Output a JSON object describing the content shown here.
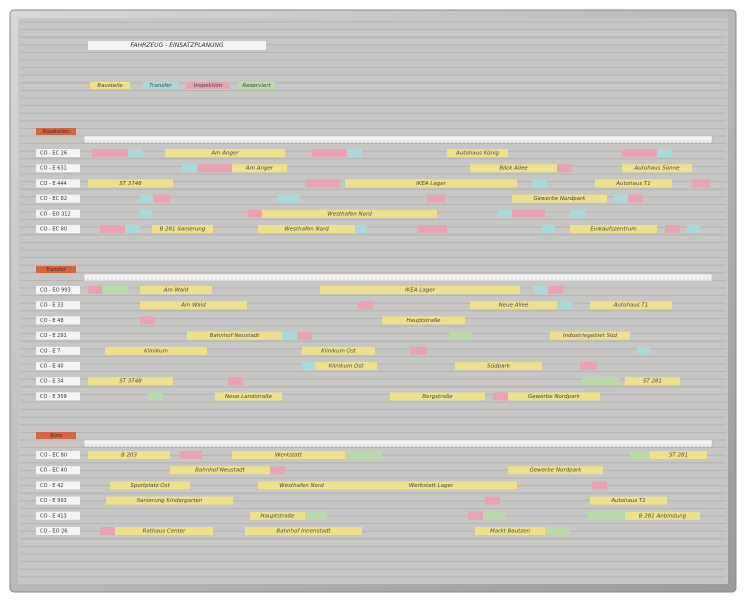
{
  "title": "FAHRZEUG - EINSATZPLANUNG",
  "legend": [
    {
      "text": "Baustelle",
      "color": "#efe08c"
    },
    {
      "text": "Transfer",
      "color": "#a9d9d9"
    },
    {
      "text": "Inspektion",
      "color": "#e9a2b2"
    },
    {
      "text": "Reserviert",
      "color": "#b9d9a9"
    }
  ],
  "sections": [
    {
      "label": "Baustellen",
      "rows": [
        {
          "label": "CO - EC 26",
          "strips": [
            {
              "color": "#e9a2b2"
            },
            {
              "color": "#a9d9d9"
            },
            {
              "text": "Am Anger",
              "color": "#efe08c"
            },
            {
              "color": "#e9a2b2"
            },
            {
              "color": "#a9d9d9"
            },
            {
              "text": "Autohaus König",
              "color": "#efe08c"
            },
            {
              "color": "#e9a2b2"
            },
            {
              "color": "#a9d9d9"
            }
          ]
        },
        {
          "label": "CO - E 631",
          "strips": [
            {
              "color": "#a9d9d9"
            },
            {
              "color": "#e9a2b2"
            },
            {
              "text": "Am Anger",
              "color": "#efe08c"
            },
            {
              "text": "Blick Allee",
              "color": "#efe08c"
            },
            {
              "color": "#e9a2b2"
            },
            {
              "text": "Autohaus Sonne",
              "color": "#efe08c"
            }
          ]
        },
        {
          "label": "CO - E 444",
          "strips": [
            {
              "text": "ST 3748",
              "color": "#efe08c"
            },
            {
              "color": "#e9a2b2"
            },
            {
              "text": "IKEA Lager",
              "color": "#efe08c"
            },
            {
              "color": "#a9d9d9"
            },
            {
              "text": "Autohaus T1",
              "color": "#efe08c"
            },
            {
              "color": "#e9a2b2"
            }
          ]
        },
        {
          "label": "CO - EC 82",
          "strips": [
            {
              "color": "#a9d9d9"
            },
            {
              "color": "#e9a2b2"
            },
            {
              "color": "#a9d9d9"
            },
            {
              "color": "#e9a2b2"
            },
            {
              "text": "Gewerbe Nordpark",
              "color": "#efe08c"
            },
            {
              "color": "#a9d9d9"
            },
            {
              "color": "#e9a2b2"
            }
          ]
        },
        {
          "label": "CO - EO 312",
          "strips": [
            {
              "color": "#a9d9d9"
            },
            {
              "color": "#e9a2b2"
            },
            {
              "text": "Westhafen Nord",
              "color": "#efe08c"
            },
            {
              "color": "#a9d9d9"
            },
            {
              "color": "#e9a2b2"
            },
            {
              "color": "#a9d9d9"
            }
          ]
        },
        {
          "label": "CO - EC 80",
          "strips": [
            {
              "color": "#e9a2b2"
            },
            {
              "color": "#a9d9d9"
            },
            {
              "text": "B 281 Sanierung",
              "color": "#efe08c"
            },
            {
              "text": "Westhafen Nord",
              "color": "#efe08c"
            },
            {
              "color": "#a9d9d9"
            },
            {
              "color": "#e9a2b2"
            },
            {
              "color": "#a9d9d9"
            },
            {
              "text": "Einkaufszentrum",
              "color": "#efe08c"
            },
            {
              "color": "#e9a2b2"
            },
            {
              "color": "#a9d9d9"
            }
          ]
        }
      ]
    },
    {
      "label": "Transfer",
      "rows": [
        {
          "label": "CO - EO 993",
          "strips": [
            {
              "color": "#e9a2b2"
            },
            {
              "color": "#b9d9a9"
            },
            {
              "text": "Am Wald",
              "color": "#efe08c"
            },
            {
              "text": "IKEA Lager",
              "color": "#efe08c"
            },
            {
              "color": "#a9d9d9"
            },
            {
              "color": "#e9a2b2"
            }
          ]
        },
        {
          "label": "CO - E 33",
          "strips": [
            {
              "text": "Am Wald",
              "color": "#efe08c"
            },
            {
              "color": "#e9a2b2"
            },
            {
              "text": "Neue Allee",
              "color": "#efe08c"
            },
            {
              "color": "#a9d9d9"
            },
            {
              "text": "Autohaus T1",
              "color": "#efe08c"
            }
          ]
        },
        {
          "label": "CO - E 48",
          "strips": [
            {
              "color": "#e9a2b2"
            },
            {
              "text": "Hauptstraße",
              "color": "#efe08c"
            }
          ]
        },
        {
          "label": "CO - E 291",
          "strips": [
            {
              "text": "Bahnhof Neustadt",
              "color": "#efe08c"
            },
            {
              "color": "#a9d9d9"
            },
            {
              "color": "#e9a2b2"
            },
            {
              "color": "#b9d9a9"
            },
            {
              "text": "Industriegebiet Süd",
              "color": "#efe08c"
            }
          ]
        },
        {
          "label": "CO - E 7",
          "strips": [
            {
              "text": "Klinikum",
              "color": "#efe08c"
            },
            {
              "text": "Klinikum Ost",
              "color": "#efe08c"
            },
            {
              "color": "#e9a2b2"
            },
            {
              "color": "#a9d9d9"
            }
          ]
        },
        {
          "label": "CO - E 40",
          "strips": [
            {
              "color": "#a9d9d9"
            },
            {
              "text": "Klinikum Ost",
              "color": "#efe08c"
            },
            {
              "text": "Südpark",
              "color": "#efe08c"
            },
            {
              "color": "#e9a2b2"
            }
          ]
        },
        {
          "label": "CO - E 34",
          "strips": [
            {
              "text": "ST 3748",
              "color": "#efe08c"
            },
            {
              "color": "#e9a2b2"
            },
            {
              "color": "#b9d9a9"
            },
            {
              "text": "ST 281",
              "color": "#efe08c"
            }
          ]
        },
        {
          "label": "CO - E 359",
          "strips": [
            {
              "color": "#b9d9a9"
            },
            {
              "text": "Neue Landstraße",
              "color": "#efe08c"
            },
            {
              "text": "Bergstraße",
              "color": "#efe08c"
            },
            {
              "color": "#e9a2b2"
            },
            {
              "text": "Gewerbe Nordpark",
              "color": "#efe08c"
            }
          ]
        }
      ]
    },
    {
      "label": "Büro",
      "rows": [
        {
          "label": "CO - EC 80",
          "strips": [
            {
              "text": "B 203",
              "color": "#efe08c"
            },
            {
              "color": "#e9a2b2"
            },
            {
              "text": "Werkstatt",
              "color": "#efe08c"
            },
            {
              "color": "#b9d9a9"
            },
            {
              "color": "#b9d9a9"
            },
            {
              "text": "ST 281",
              "color": "#efe08c"
            }
          ]
        },
        {
          "label": "CO - EC 40",
          "strips": [
            {
              "text": "Bahnhof Neustadt",
              "color": "#efe08c"
            },
            {
              "color": "#e9a2b2"
            },
            {
              "text": "Gewerbe Nordpark",
              "color": "#efe08c"
            }
          ]
        },
        {
          "label": "CO - E 42",
          "strips": [
            {
              "text": "Sportplatz Ost",
              "color": "#efe08c"
            },
            {
              "text": "Westhafen Nord",
              "color": "#efe08c"
            },
            {
              "text": "Werkstatt Lager",
              "color": "#efe08c"
            },
            {
              "color": "#e9a2b2"
            }
          ]
        },
        {
          "label": "CO - E 993",
          "strips": [
            {
              "text": "Sanierung Kindergarten",
              "color": "#efe08c"
            },
            {
              "color": "#e9a2b2"
            },
            {
              "text": "Autohaus T1",
              "color": "#efe08c"
            }
          ]
        },
        {
          "label": "CO - E 413",
          "strips": [
            {
              "text": "Hauptstraße",
              "color": "#efe08c"
            },
            {
              "color": "#b9d9a9"
            },
            {
              "color": "#e9a2b2"
            },
            {
              "color": "#b9d9a9"
            },
            {
              "color": "#b9d9a9"
            },
            {
              "text": "B 281 Anbindung",
              "color": "#efe08c"
            }
          ]
        },
        {
          "label": "CO - EO 26",
          "strips": [
            {
              "color": "#e9a2b2"
            },
            {
              "text": "Rathaus Center",
              "color": "#efe08c"
            },
            {
              "text": "Bahnhof Innenstadt",
              "color": "#efe08c"
            },
            {
              "text": "Markt Bautzen",
              "color": "#efe08c"
            },
            {
              "color": "#b9d9a9"
            }
          ]
        }
      ]
    }
  ]
}
